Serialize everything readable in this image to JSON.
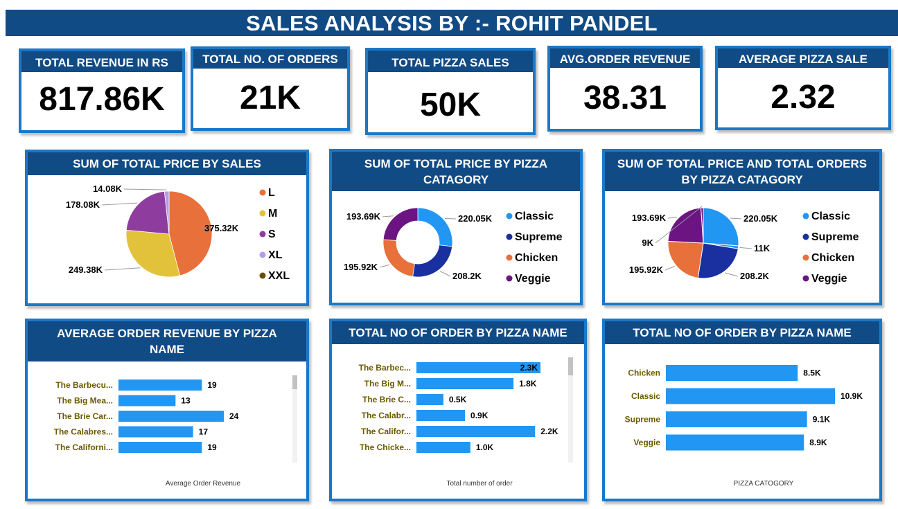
{
  "banner": {
    "title": "SALES ANALYSIS BY :- ROHIT PANDEL"
  },
  "kpis": [
    {
      "label": "TOTAL REVENUE IN RS",
      "value": "817.86K"
    },
    {
      "label": "TOTAL NO. OF ORDERS",
      "value": "21K"
    },
    {
      "label": "TOTAL PIZZA SALES",
      "value": "50K"
    },
    {
      "label": "AVG.ORDER REVENUE",
      "value": "38.31"
    },
    {
      "label": "AVERAGE PIZZA SALE",
      "value": "2.32"
    }
  ],
  "colors": {
    "header_bg": "#114b86",
    "border": "#1a78c9",
    "bar": "#2196f3",
    "category_text": "#6b5a00"
  },
  "chart_data": [
    {
      "type": "pie",
      "title": "SUM OF TOTAL PRICE BY SALES",
      "categories": [
        "L",
        "M",
        "S",
        "XL",
        "XXL"
      ],
      "values": [
        375.32,
        249.38,
        178.08,
        14.08,
        0
      ],
      "data_labels": [
        "375.32K",
        "249.38K",
        "178.08K",
        "14.08K",
        ""
      ],
      "colors": [
        "#e8703a",
        "#e3c23b",
        "#8e3d9e",
        "#b49de6",
        "#6b4e00"
      ],
      "legend": "right"
    },
    {
      "type": "pie",
      "title": "SUM OF TOTAL PRICE BY PIZZA CATAGORY",
      "donut": true,
      "categories": [
        "Classic",
        "Supreme",
        "Chicken",
        "Veggie"
      ],
      "values": [
        220.05,
        208.2,
        195.92,
        193.69
      ],
      "data_labels": [
        "220.05K",
        "208.2K",
        "195.92K",
        "193.69K"
      ],
      "colors": [
        "#2196f3",
        "#1a2fa0",
        "#e8703a",
        "#6b1482"
      ],
      "legend": "right"
    },
    {
      "type": "pie",
      "title": "SUM OF TOTAL PRICE AND TOTAL ORDERS BY PIZZA CATAGORY",
      "categories": [
        "Classic",
        "Supreme",
        "Chicken",
        "Veggie"
      ],
      "series": [
        {
          "name": "price",
          "values": [
            220.05,
            208.2,
            195.92,
            193.69
          ],
          "data_labels": [
            "220.05K",
            "208.2K",
            "195.92K",
            "193.69K"
          ]
        },
        {
          "name": "orders",
          "values": [
            11,
            0,
            0,
            9
          ],
          "data_labels": [
            "11K",
            "",
            "",
            "9K"
          ]
        }
      ],
      "colors": [
        "#2196f3",
        "#1a2fa0",
        "#e8703a",
        "#6b1482"
      ],
      "legend": "right"
    },
    {
      "type": "bar",
      "orientation": "horizontal",
      "title": "AVERAGE ORDER REVENUE BY PIZZA NAME",
      "categories": [
        "The Barbecu...",
        "The Big Mea...",
        "The Brie Car...",
        "The Calabres...",
        "The Californi..."
      ],
      "values": [
        19,
        13,
        24,
        17,
        19
      ],
      "data_labels": [
        "19",
        "13",
        "24",
        "17",
        "19"
      ],
      "xlabel": "Average Order Revenue",
      "xlim": [
        0,
        24
      ]
    },
    {
      "type": "bar",
      "orientation": "horizontal",
      "title": "TOTAL NO OF ORDER BY PIZZA NAME",
      "categories": [
        "The Barbec...",
        "The Big M...",
        "The Brie C...",
        "The Calabr...",
        "The Califor...",
        "The Chicke..."
      ],
      "values": [
        2.3,
        1.8,
        0.5,
        0.9,
        2.2,
        1.0
      ],
      "data_labels": [
        "2.3K",
        "1.8K",
        "0.5K",
        "0.9K",
        "2.2K",
        "1.0K"
      ],
      "xlabel": "Total number of order",
      "xlim": [
        0,
        2.3
      ]
    },
    {
      "type": "bar",
      "orientation": "horizontal",
      "title": "TOTAL NO OF ORDER BY PIZZA NAME",
      "categories": [
        "Chicken",
        "Classic",
        "Supreme",
        "Veggie"
      ],
      "values": [
        8.5,
        10.9,
        9.1,
        8.9
      ],
      "data_labels": [
        "8.5K",
        "10.9K",
        "9.1K",
        "8.9K"
      ],
      "xlabel": "PIZZA CATOGORY",
      "xlim": [
        0,
        10.9
      ]
    }
  ]
}
